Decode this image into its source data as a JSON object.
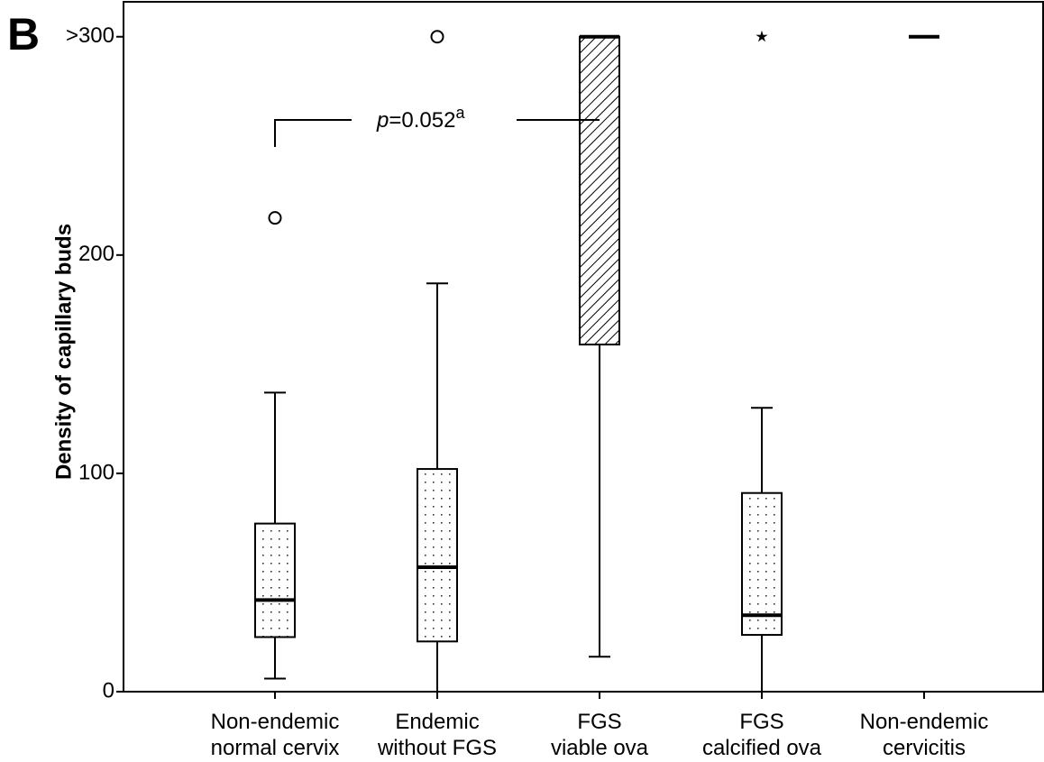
{
  "chart_data": {
    "type": "box",
    "panel_label": "B",
    "ylabel": "Density of capillary buds",
    "categories": [
      "Non-endemic\nnormal cervix",
      "Endemic\nwithout FGS",
      "FGS\nviable ova",
      "FGS\ncalcified ova",
      "Non-endemic\ncervicitis"
    ],
    "boxes": [
      {
        "whisker_low": 6,
        "q1": 25,
        "median": 42,
        "q3": 77,
        "whisker_high": 137,
        "outliers": [
          217
        ],
        "outlier_marker": "circle",
        "pattern": "dots"
      },
      {
        "whisker_low": 0,
        "q1": 23,
        "median": 57,
        "q3": 102,
        "whisker_high": 187,
        "outliers": [
          300
        ],
        "outlier_marker": "circle",
        "pattern": "dots"
      },
      {
        "whisker_low": 16,
        "q1": 159,
        "median": 300,
        "q3": 300,
        "whisker_high": 300,
        "outliers": [],
        "outlier_marker": "circle",
        "pattern": "hatch"
      },
      {
        "whisker_low": 0,
        "q1": 26,
        "median": 35,
        "q3": 91,
        "whisker_high": 130,
        "outliers": [
          300
        ],
        "outlier_marker": "star",
        "pattern": "dots"
      },
      {
        "whisker_low": 300,
        "q1": 300,
        "median": 300,
        "q3": 300,
        "whisker_high": 300,
        "outliers": [],
        "outlier_marker": "circle",
        "pattern": "dots"
      }
    ],
    "annotation": {
      "italic": "p",
      "text": "=0.052",
      "superscript": "a"
    },
    "ylim": [
      0,
      316
    ],
    "yticks": [
      0,
      100,
      200,
      {
        "value": 300,
        "label": ">300"
      }
    ]
  }
}
